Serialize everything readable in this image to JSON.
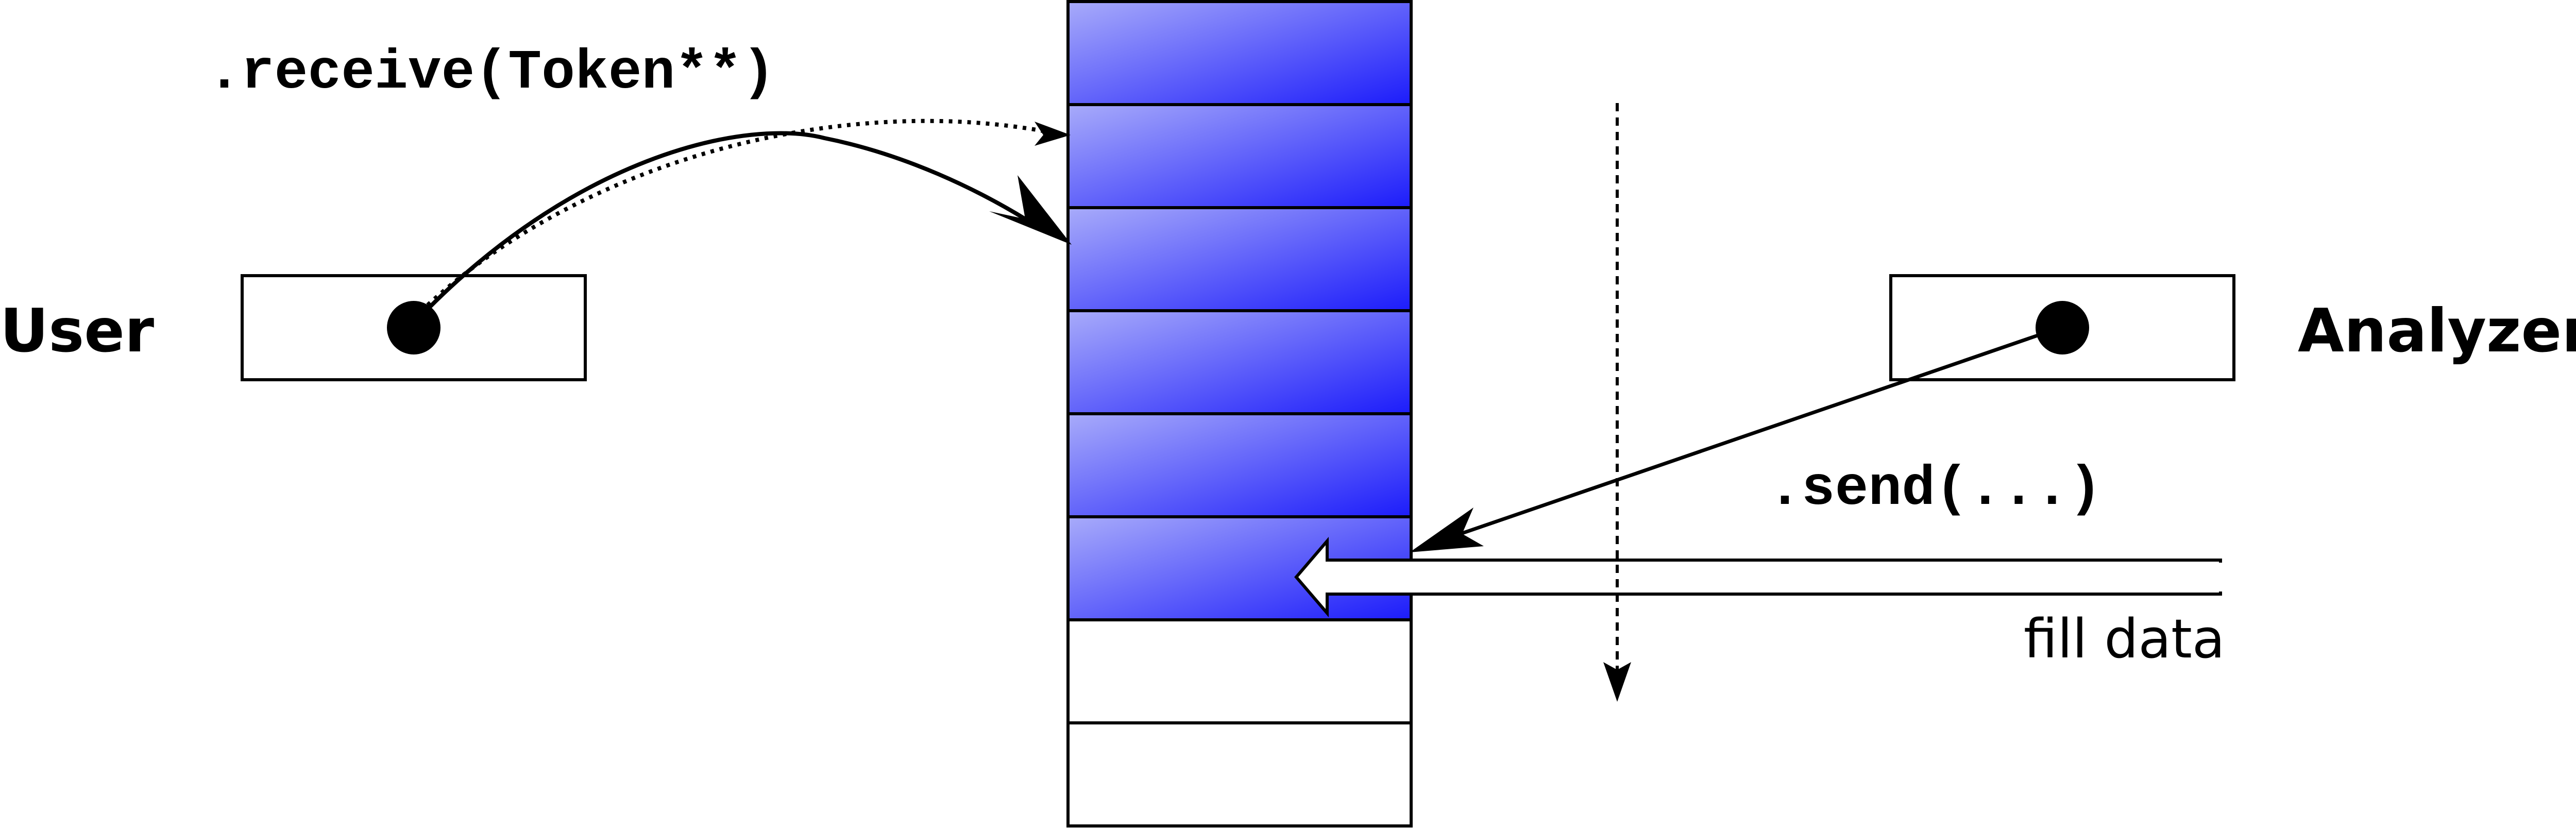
{
  "labels": {
    "user": "User",
    "analyzer": "Analyzer",
    "receive_call": ".receive(Token**)",
    "send_call": ".send(...)",
    "fill_data": "fill data"
  },
  "buffer": {
    "slot_count": 8,
    "filled_count": 6,
    "colors": {
      "fill_light": "#a8abfa",
      "fill_dark": "#1c1cfa",
      "empty": "#ffffff",
      "border": "#000000"
    }
  }
}
